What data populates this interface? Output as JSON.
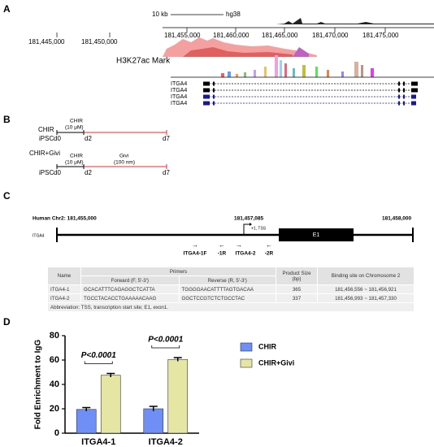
{
  "panel_a": {
    "label": "A",
    "scale": "10 kb",
    "genome": "hg38",
    "positions": [
      "181,445,000",
      "181,450,000",
      "181,455,000",
      "181,460,000",
      "181,465,000",
      "181,470,000",
      "181,475,000"
    ],
    "track": "H3K27ac Mark",
    "genes": [
      "ITGA4",
      "ITGA4",
      "ITGA4",
      "ITGA4"
    ]
  },
  "panel_b": {
    "label": "B",
    "rows": [
      {
        "name": "CHIR",
        "cell": "iPSC",
        "treatment": "CHIR",
        "dose": "(10 μM)",
        "days": [
          "d0",
          "d2",
          "d7"
        ]
      },
      {
        "name": "CHIR+Givi",
        "cell": "iPSC",
        "treatment": "CHIR",
        "dose": "(10 μM)",
        "second": "Givi",
        "second_dose": "(100 nm)",
        "days": [
          "d0",
          "d2",
          "d7"
        ]
      }
    ]
  },
  "panel_c": {
    "label": "C",
    "locus": "Human Chr2: 181,455,000",
    "tss": "181,457,085",
    "tss_label": "+1, TSS",
    "end": "181,458,000",
    "gene": "ITGA4",
    "exon": "E1",
    "primers": [
      "ITGA4-1F",
      "-1R",
      "ITGA4-2",
      "-2R"
    ],
    "table": {
      "header": [
        "Name",
        "Primers",
        "Product Size (bp)",
        "Binding site on Chromosome 2"
      ],
      "subheader": [
        "Forward (F, 5'-3')",
        "Reverse (R, 5'-3')"
      ],
      "rows": [
        [
          "ITGA4-1",
          "GCACATTTCAGAGGCTCATTA",
          "TGGGGAACATTTTAGTGACAA",
          "365",
          "181,456,556 ~ 181,456,921"
        ],
        [
          "ITGA4-2",
          "TGCCTACACCTGAAAAACAAG",
          "GGCTCCGTCTCTGCCTAC",
          "337",
          "181,456,993 ~ 181,457,330"
        ]
      ],
      "footnote": "Abbreviation: TSS, transcription start site; E1, exon1."
    }
  },
  "panel_d": {
    "label": "D"
  },
  "chart_data": {
    "type": "bar",
    "ylabel": "Fold Enrichment to IgG",
    "categories": [
      "ITGA4-1",
      "ITGA4-2"
    ],
    "series": [
      {
        "name": "CHIR",
        "color": "#6f8ff7",
        "values": [
          19.5,
          20
        ],
        "errors": [
          1.5,
          2
        ]
      },
      {
        "name": "CHIR+Givi",
        "color": "#e6e6a4",
        "values": [
          47.5,
          60.5
        ],
        "errors": [
          1.5,
          1.5
        ]
      }
    ],
    "ylim": [
      0,
      80
    ],
    "yticks": [
      0,
      20,
      40,
      60,
      80
    ],
    "annotations": [
      "P<0.0001",
      "P<0.0001"
    ]
  }
}
